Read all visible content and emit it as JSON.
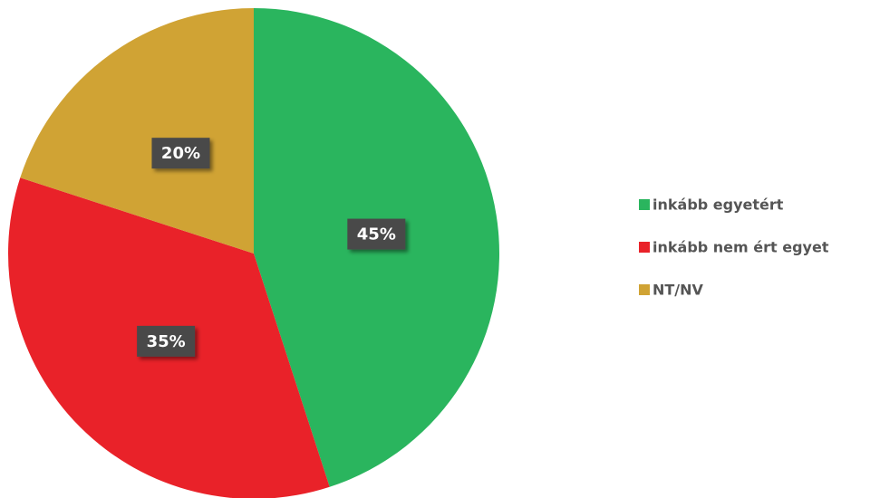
{
  "chart_data": {
    "type": "pie",
    "categories": [
      "inkább egyetért",
      "inkább nem ért egyet",
      "NT/NV"
    ],
    "values": [
      45,
      35,
      20
    ],
    "value_labels": [
      "45%",
      "35%",
      "20%"
    ],
    "colors": [
      "#2ab55e",
      "#e92229",
      "#d0a334"
    ],
    "legend": "right"
  }
}
